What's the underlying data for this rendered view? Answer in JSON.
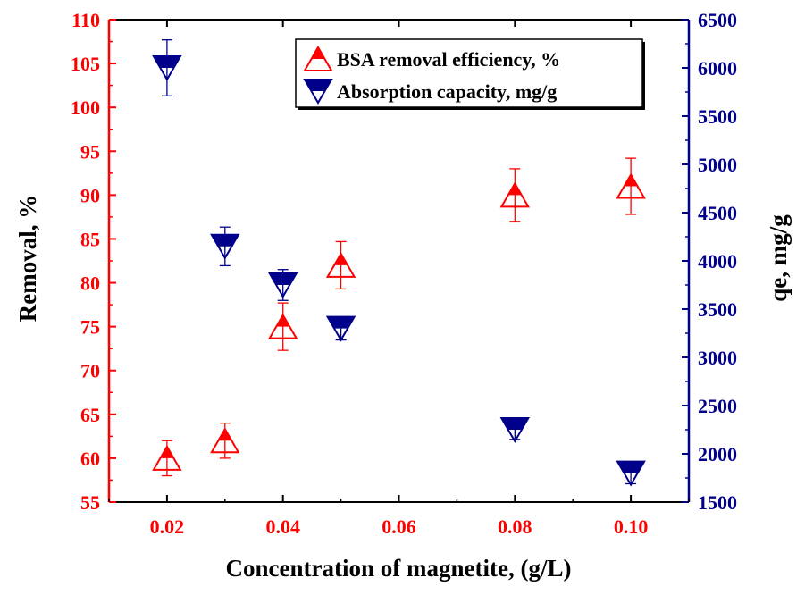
{
  "colors": {
    "left_axis": "#ff0000",
    "right_axis": "#00008b",
    "frame": "#000000",
    "background": "#ffffff"
  },
  "chart_data": {
    "type": "scatter",
    "xlabel": "Concentration of magnetite, (g/L)",
    "ylabel_left": "Removal, %",
    "ylabel_right": "qe, mg/g",
    "xlim": [
      0.01,
      0.11
    ],
    "ylim_left": [
      55,
      110
    ],
    "ylim_right": [
      1500,
      6500
    ],
    "x_ticks": [
      "0.02",
      "0.04",
      "0.06",
      "0.08",
      "0.10"
    ],
    "x_tick_values": [
      0.02,
      0.04,
      0.06,
      0.08,
      0.1
    ],
    "y_ticks_left": [
      "55",
      "60",
      "65",
      "70",
      "75",
      "80",
      "85",
      "90",
      "95",
      "100",
      "105",
      "110"
    ],
    "y_ticks_right": [
      "1500",
      "2000",
      "2500",
      "3000",
      "3500",
      "4000",
      "4500",
      "5000",
      "5500",
      "6000",
      "6500"
    ],
    "grid": false,
    "legend_position": "top-right",
    "series": [
      {
        "name": "BSA removal efficiency, %",
        "axis": "left",
        "marker": "triangle-up",
        "color": "#ff0000",
        "x": [
          0.02,
          0.03,
          0.04,
          0.05,
          0.08,
          0.1
        ],
        "y": [
          60.0,
          62.0,
          75.0,
          82.0,
          90.0,
          91.0
        ],
        "err": [
          2.0,
          2.0,
          2.7,
          2.7,
          3.0,
          3.2
        ]
      },
      {
        "name": "Absorption capacity, mg/g",
        "axis": "right",
        "marker": "triangle-down",
        "color": "#00008b",
        "x": [
          0.02,
          0.03,
          0.04,
          0.05,
          0.08,
          0.1
        ],
        "y": [
          6000,
          4150,
          3750,
          3300,
          2250,
          1800
        ],
        "err": [
          290,
          200,
          160,
          120,
          100,
          110
        ]
      }
    ]
  }
}
